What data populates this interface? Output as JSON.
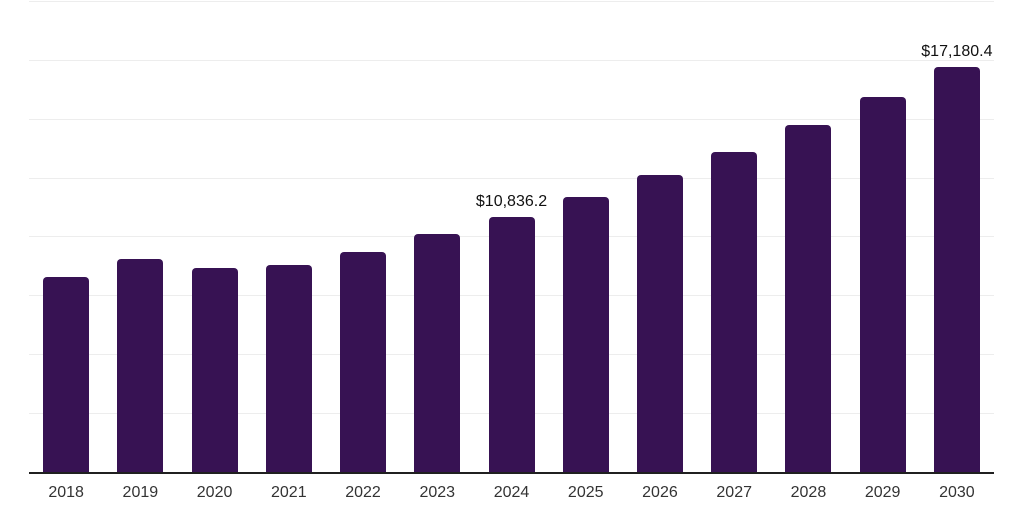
{
  "page": {
    "background_color": "#ffffff"
  },
  "chart": {
    "bar_color": "#371253",
    "grid_color": "#ededed",
    "axis_line_color": "#202020",
    "tick_label_color": "#333333",
    "value_label_color": "#111111"
  },
  "chart_data": {
    "type": "bar",
    "title": "",
    "xlabel": "",
    "ylabel": "",
    "categories": [
      "2018",
      "2019",
      "2020",
      "2021",
      "2022",
      "2023",
      "2024",
      "2025",
      "2026",
      "2027",
      "2028",
      "2029",
      "2030"
    ],
    "values": [
      8270,
      9050,
      8650,
      8770,
      9330,
      10110,
      10836.2,
      11670,
      12630,
      13590,
      14720,
      15910,
      17180.4
    ],
    "data_labels": [
      "",
      "",
      "",
      "",
      "",
      "",
      "$10,836.2",
      "",
      "",
      "",
      "",
      "",
      "$17,180.4"
    ],
    "ylim": [
      0,
      20000
    ],
    "grid_step": 2500,
    "grid": "horizontal",
    "y_axis_labels_visible": false,
    "legend_position": "none"
  }
}
